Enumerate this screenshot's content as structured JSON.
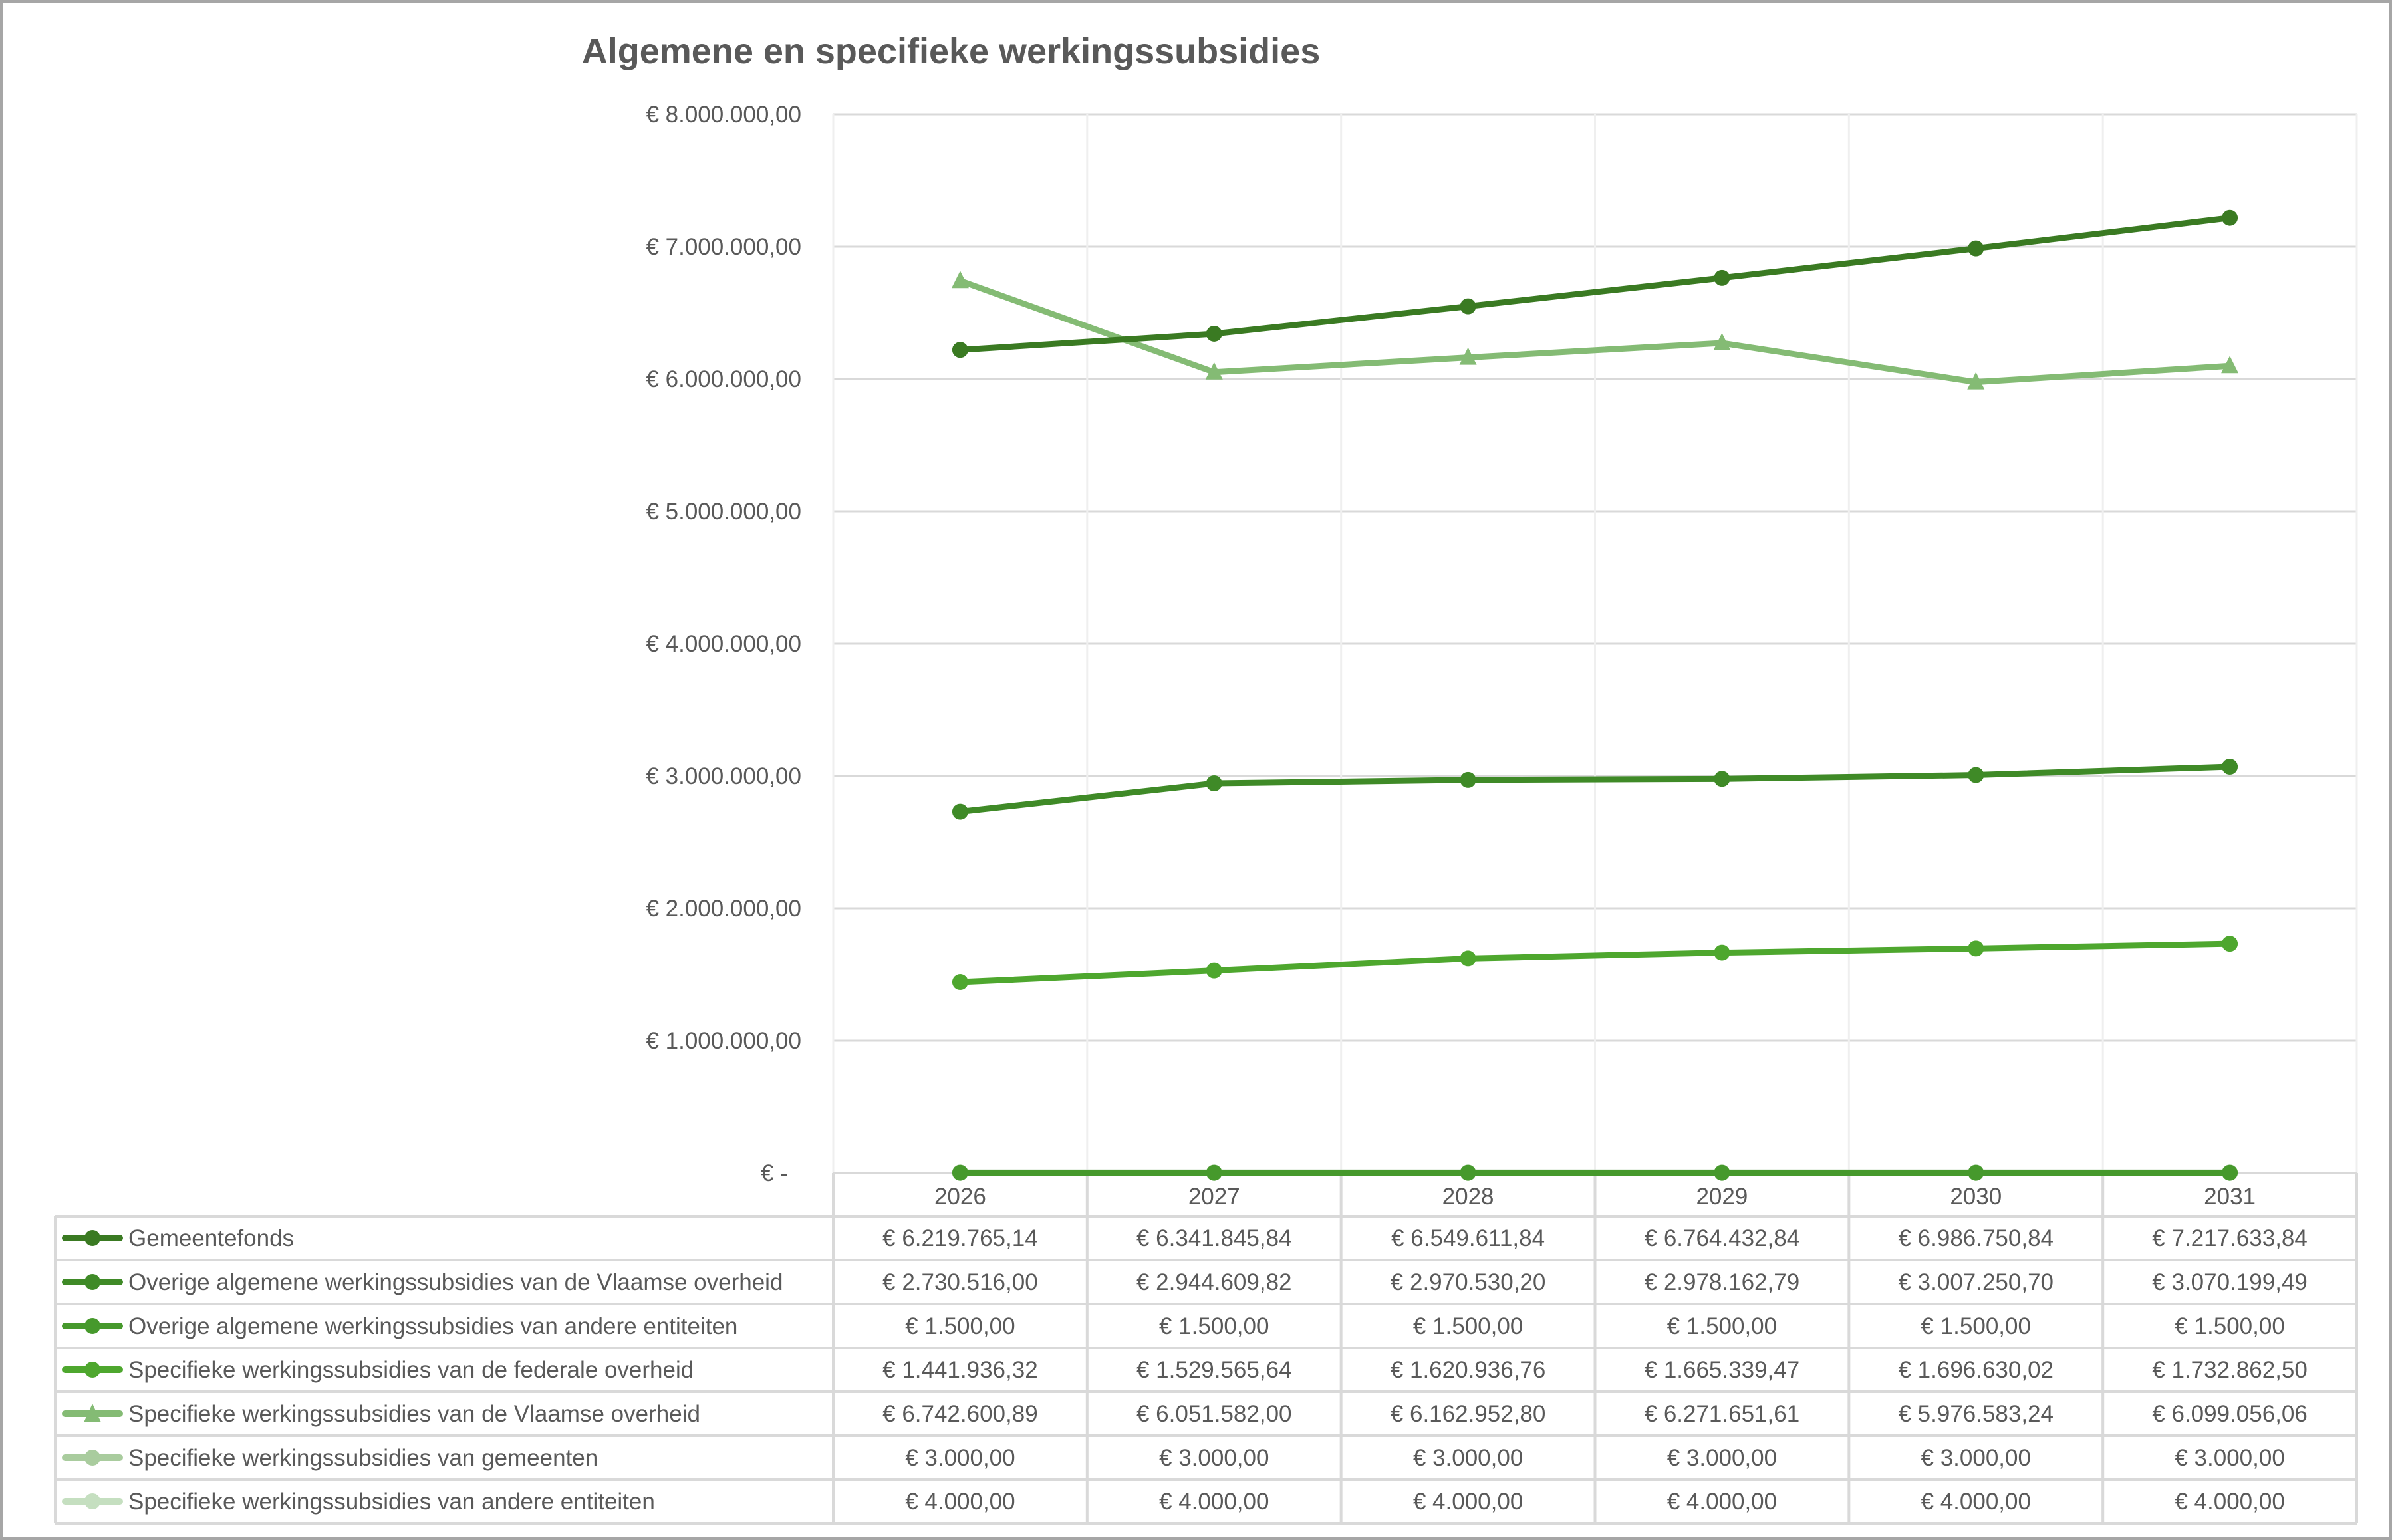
{
  "chart_data": {
    "type": "line",
    "title": "Algemene en specifieke  werkingssubsidies",
    "xlabel": "",
    "ylabel": "",
    "ylim": [
      0,
      8000000
    ],
    "yticks": [
      0,
      1000000,
      2000000,
      3000000,
      4000000,
      5000000,
      6000000,
      7000000,
      8000000
    ],
    "ytick_labels": [
      "€ -",
      "€ 1.000.000,00",
      "€ 2.000.000,00",
      "€ 3.000.000,00",
      "€ 4.000.000,00",
      "€ 5.000.000,00",
      "€ 6.000.000,00",
      "€ 7.000.000,00",
      "€ 8.000.000,00"
    ],
    "grid": true,
    "legend": "data-table-below",
    "categories": [
      "2026",
      "2027",
      "2028",
      "2029",
      "2030",
      "2031"
    ],
    "series": [
      {
        "name": "Gemeentefonds",
        "color": "#3a7a22",
        "marker": "circle",
        "values": [
          6219765.14,
          6341845.84,
          6549611.84,
          6764432.84,
          6986750.84,
          7217633.84
        ],
        "labels": [
          "€ 6.219.765,14",
          "€ 6.341.845,84",
          "€ 6.549.611,84",
          "€ 6.764.432,84",
          "€ 6.986.750,84",
          "€ 7.217.633,84"
        ]
      },
      {
        "name": "Overige algemene werkingssubsidies van de Vlaamse overheid",
        "color": "#3f8a27",
        "marker": "circle",
        "values": [
          2730516.0,
          2944609.82,
          2970530.2,
          2978162.79,
          3007250.7,
          3070199.49
        ],
        "labels": [
          "€ 2.730.516,00",
          "€ 2.944.609,82",
          "€ 2.970.530,20",
          "€ 2.978.162,79",
          "€ 3.007.250,70",
          "€ 3.070.199,49"
        ]
      },
      {
        "name": "Overige algemene werkingssubsidies van andere entiteiten",
        "color": "#46992c",
        "marker": "circle",
        "values": [
          1500,
          1500,
          1500,
          1500,
          1500,
          1500
        ],
        "labels": [
          "€ 1.500,00",
          "€ 1.500,00",
          "€ 1.500,00",
          "€ 1.500,00",
          "€ 1.500,00",
          "€ 1.500,00"
        ]
      },
      {
        "name": "Specifieke werkingssubsidies van de federale overheid",
        "color": "#4ea72e",
        "marker": "circle",
        "values": [
          1441936.32,
          1529565.64,
          1620936.76,
          1665339.47,
          1696630.02,
          1732862.5
        ],
        "labels": [
          "€ 1.441.936,32",
          "€ 1.529.565,64",
          "€ 1.620.936,76",
          "€ 1.665.339,47",
          "€ 1.696.630,02",
          "€ 1.732.862,50"
        ]
      },
      {
        "name": "Specifieke werkingssubsidies van de Vlaamse overheid",
        "color": "#84bb74",
        "marker": "triangle",
        "values": [
          6742600.89,
          6051582.0,
          6162952.8,
          6271651.61,
          5976583.24,
          6099056.06
        ],
        "labels": [
          "€ 6.742.600,89",
          "€ 6.051.582,00",
          "€ 6.162.952,80",
          "€ 6.271.651,61",
          "€ 5.976.583,24",
          "€ 6.099.056,06"
        ]
      },
      {
        "name": "Specifieke werkingssubsidies van gemeenten",
        "color": "#a9cc9e",
        "marker": "circle",
        "values": [
          3000,
          3000,
          3000,
          3000,
          3000,
          3000
        ],
        "labels": [
          "€ 3.000,00",
          "€ 3.000,00",
          "€ 3.000,00",
          "€ 3.000,00",
          "€ 3.000,00",
          "€ 3.000,00"
        ]
      },
      {
        "name": "Specifieke werkingssubsidies van andere entiteiten",
        "color": "#c5dfc0",
        "marker": "circle",
        "values": [
          4000,
          4000,
          4000,
          4000,
          4000,
          4000
        ],
        "labels": [
          "€ 4.000,00",
          "€ 4.000,00",
          "€ 4.000,00",
          "€ 4.000,00",
          "€ 4.000,00",
          "€ 4.000,00"
        ]
      }
    ]
  }
}
